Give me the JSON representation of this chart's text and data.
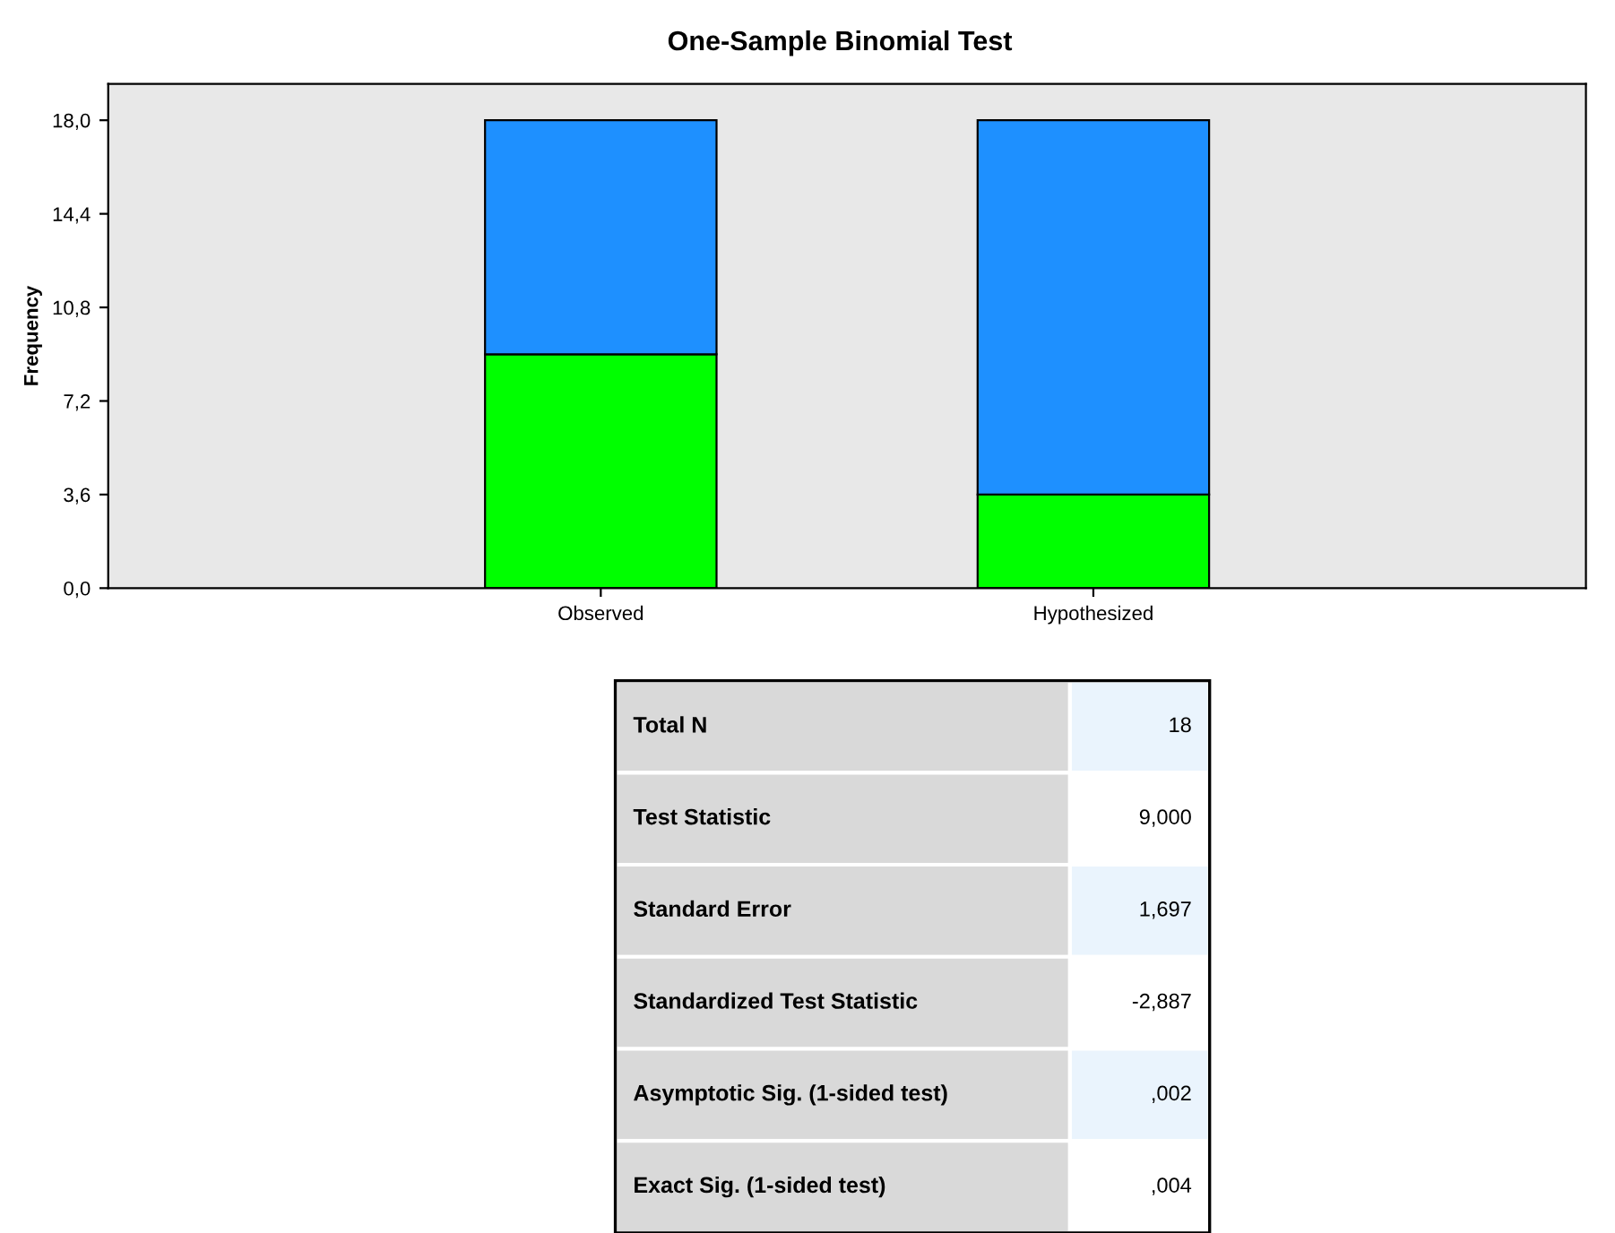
{
  "chart_data": [
    {
      "type": "bar",
      "title": "One-Sample Binomial Test",
      "ylabel": "Frequency",
      "categories": [
        "Observed",
        "Hypothesized"
      ],
      "stacked": true,
      "series": [
        {
          "color": "#00ff00",
          "values": [
            9,
            3.6
          ]
        },
        {
          "color": "#1e90ff",
          "values": [
            9,
            14.4
          ]
        }
      ],
      "ylim": [
        0,
        19.4
      ],
      "yticks": [
        {
          "value": 0,
          "label": "0,0"
        },
        {
          "value": 3.6,
          "label": "3,6"
        },
        {
          "value": 7.2,
          "label": "7,2"
        },
        {
          "value": 10.8,
          "label": "10,8"
        },
        {
          "value": 14.4,
          "label": "14,4"
        },
        {
          "value": 18,
          "label": "18,0"
        }
      ],
      "grid": false
    },
    {
      "type": "other",
      "categories": [
        "Total N",
        "Test Statistic",
        "Standard Error",
        "Standardized Test Statistic",
        "Asymptotic Sig. (1-sided test)",
        "Exact Sig. (1-sided test)"
      ],
      "annotations": [
        "18",
        "9,000",
        "1,697",
        "-2,887",
        ",002",
        ",004"
      ]
    }
  ]
}
